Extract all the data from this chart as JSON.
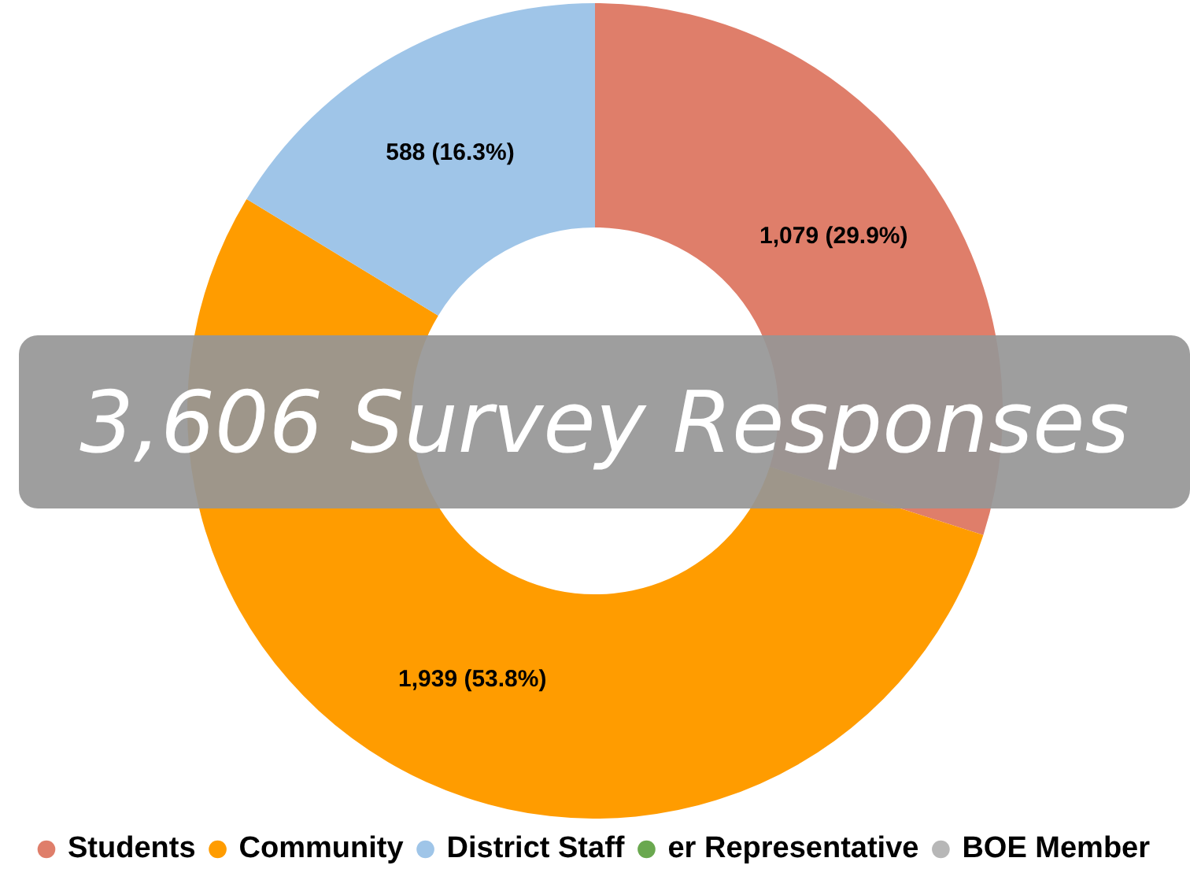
{
  "chart_data": {
    "type": "donut",
    "categories": [
      "Students",
      "Community",
      "District Staff",
      "er Representative",
      "BOE Member"
    ],
    "values": [
      1079,
      1939,
      588,
      0,
      0
    ],
    "colors": [
      "#df7e6a",
      "#ff9c00",
      "#9fc5e8",
      "#6aa84f",
      "#b7b7b7"
    ],
    "value_labels": [
      "1,079 (29.9%)",
      "1,939 (53.8%)",
      "588 (16.3%)",
      null,
      null
    ],
    "legend": "bottom",
    "annotations": [
      "3,606 Survey Responses"
    ]
  }
}
